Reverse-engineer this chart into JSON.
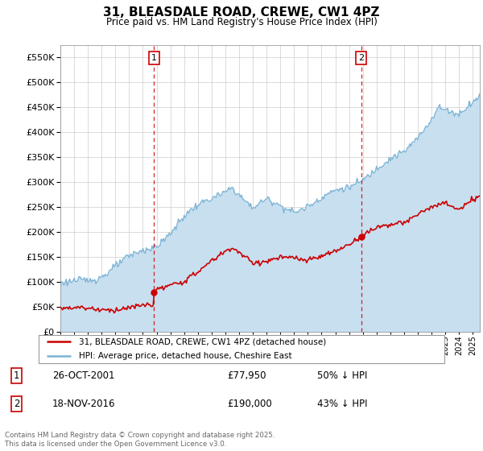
{
  "title": "31, BLEASDALE ROAD, CREWE, CW1 4PZ",
  "subtitle": "Price paid vs. HM Land Registry's House Price Index (HPI)",
  "ylim": [
    0,
    575000
  ],
  "yticks": [
    0,
    50000,
    100000,
    150000,
    200000,
    250000,
    300000,
    350000,
    400000,
    450000,
    500000,
    550000
  ],
  "hpi_color": "#7ab3d4",
  "hpi_fill_color": "#c8dff0",
  "price_color": "#cc0000",
  "marker1_date_x": 2001.82,
  "marker1_price": 77950,
  "marker2_date_x": 2016.88,
  "marker2_price": 190000,
  "marker1_label": "1",
  "marker2_label": "2",
  "legend_line1": "31, BLEASDALE ROAD, CREWE, CW1 4PZ (detached house)",
  "legend_line2": "HPI: Average price, detached house, Cheshire East",
  "annotation1_num": "1",
  "annotation1_date": "26-OCT-2001",
  "annotation1_price": "£77,950",
  "annotation1_hpi": "50% ↓ HPI",
  "annotation2_num": "2",
  "annotation2_date": "18-NOV-2016",
  "annotation2_price": "£190,000",
  "annotation2_hpi": "43% ↓ HPI",
  "footer": "Contains HM Land Registry data © Crown copyright and database right 2025.\nThis data is licensed under the Open Government Licence v3.0.",
  "xmin": 1995.0,
  "xmax": 2025.5,
  "bg_color": "#f0f4f8"
}
